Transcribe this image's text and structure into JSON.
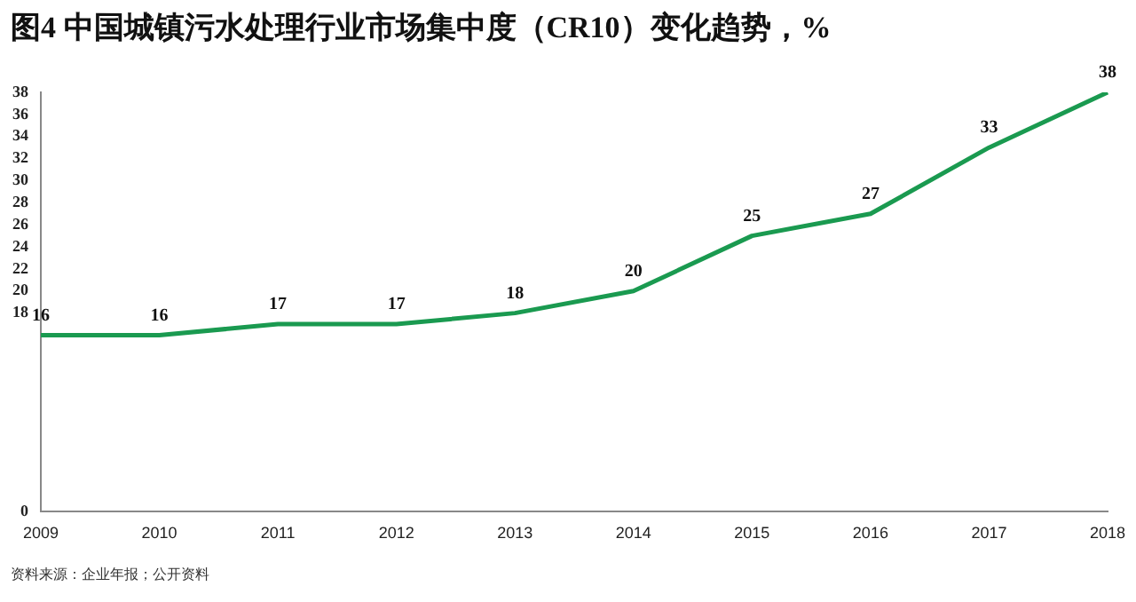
{
  "chart_data": {
    "type": "line",
    "title": "图4 中国城镇污水处理行业市场集中度（CR10）变化趋势，%",
    "categories": [
      "2009",
      "2010",
      "2011",
      "2012",
      "2013",
      "2014",
      "2015",
      "2016",
      "2017",
      "2018"
    ],
    "series": [
      {
        "color": "#1a9a50",
        "values": [
          16,
          16,
          17,
          17,
          18,
          20,
          25,
          27,
          33,
          38
        ]
      }
    ],
    "ylim": [
      0,
      38
    ],
    "yticks": [
      0,
      18,
      20,
      22,
      24,
      26,
      28,
      30,
      32,
      34,
      36,
      38
    ],
    "grid": false,
    "legend": false,
    "marker": "none",
    "line_style": "solid",
    "data_labels": true,
    "annotations": [
      "资料来源：企业年报；公开资料"
    ]
  }
}
